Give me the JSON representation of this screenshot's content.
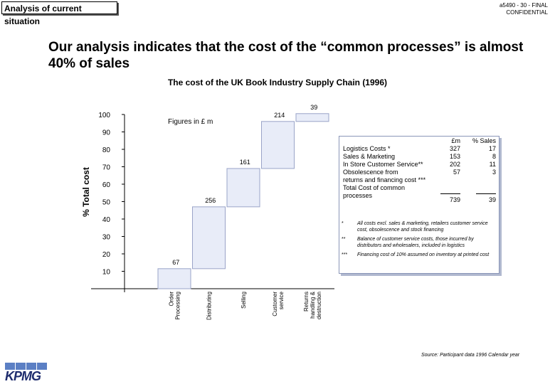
{
  "section_tab": "Analysis of current situation",
  "doc_ref": {
    "line1": "a5490 - 30 - FINAL",
    "line2": "CONFIDENTIAL"
  },
  "headline": "Our analysis indicates that the cost of the “common processes” is almost 40% of sales",
  "chart_data": {
    "type": "bar",
    "subtype": "waterfall",
    "title": "The cost of the UK Book Industry Supply Chain (1996)",
    "ylabel": "% Total cost",
    "annotation": "Figures in £ m",
    "ylim": [
      0,
      100
    ],
    "yticks": [
      10,
      20,
      30,
      40,
      50,
      60,
      70,
      80,
      90,
      100
    ],
    "categories": [
      "Order Processing",
      "Distributing",
      "Selling",
      "Customer service",
      "Returns handling & destruction"
    ],
    "segments": [
      {
        "label": "Order\nProcessing",
        "value_gbp_m": "67",
        "base": 0,
        "top": 11.5
      },
      {
        "label": "Distributing",
        "value_gbp_m": "256",
        "base": 11.5,
        "top": 47
      },
      {
        "label": "Selling",
        "value_gbp_m": "161",
        "base": 47,
        "top": 69
      },
      {
        "label": "Customer\nservice",
        "value_gbp_m": "214",
        "base": 69,
        "top": 96
      },
      {
        "label": "Returns\nhandling &\ndestruction",
        "value_gbp_m": "39",
        "base": 96,
        "top": 100.5
      }
    ],
    "colors": {
      "bar_fill": "#e8ecf8",
      "bar_stroke": "#9aa4c8",
      "axis": "#000000"
    }
  },
  "legend_table": {
    "headers": [
      "£m",
      "% Sales"
    ],
    "rows": [
      {
        "label": "Logistics Costs *",
        "gbp": "327",
        "pct": "17"
      },
      {
        "label": "Sales & Marketing",
        "gbp": "153",
        "pct": "8"
      },
      {
        "label": "In Store Customer Service**",
        "gbp": "202",
        "pct": "11"
      },
      {
        "label": "Obsolescence from",
        "gbp": "57",
        "pct": "3"
      },
      {
        "label": "returns and financing cost ***",
        "gbp": "",
        "pct": ""
      }
    ],
    "total": {
      "label": "Total Cost of common processes",
      "gbp": "739",
      "pct": "39"
    }
  },
  "notes": [
    {
      "marker": "*",
      "text": "All costs excl. sales & marketing, retailers customer service cost, obsolescence and stock financing"
    },
    {
      "marker": "**",
      "text": "Balance of customer service costs, those incurred by distributors and wholesalers, included in logistics"
    },
    {
      "marker": "***",
      "text": "Financing cost of 10% assumed on inventory at printed cost"
    }
  ],
  "source": "Source: Participant data 1996 Calendar year",
  "logo_text": "KPMG",
  "colors": {
    "logo_blue": "#5b7fc4",
    "logo_text": "#1f2d6e",
    "legend_border": "#8a96b8"
  }
}
